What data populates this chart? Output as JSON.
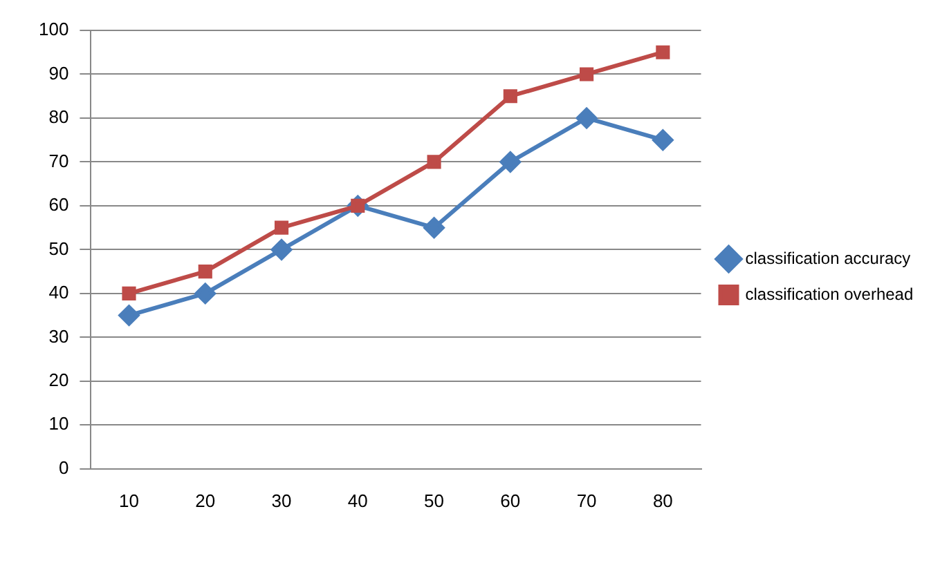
{
  "chart_data": {
    "type": "line",
    "categories": [
      "10",
      "20",
      "30",
      "40",
      "50",
      "60",
      "70",
      "80"
    ],
    "series": [
      {
        "name": "classification accuracy",
        "color": "#4a7ebb",
        "marker": "diamond",
        "values": [
          35,
          40,
          50,
          60,
          55,
          70,
          80,
          75
        ]
      },
      {
        "name": "classification overhead",
        "color": "#be4b48",
        "marker": "square",
        "values": [
          40,
          45,
          55,
          60,
          70,
          85,
          90,
          95
        ]
      }
    ],
    "ylim": [
      0,
      100
    ],
    "yticks": [
      0,
      10,
      20,
      30,
      40,
      50,
      60,
      70,
      80,
      90,
      100
    ],
    "grid": "y",
    "legend": "right",
    "line_style": "solid"
  }
}
